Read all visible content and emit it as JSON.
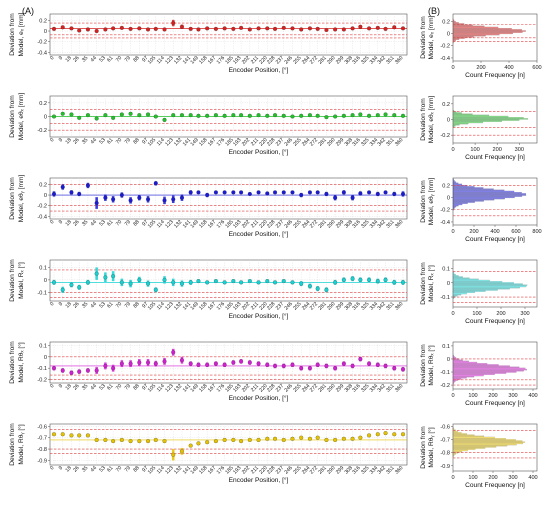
{
  "panel_labels": [
    "(A)",
    "(B)"
  ],
  "chart_data": [
    {
      "id": "ex",
      "type": "scatter",
      "color": "#d62020",
      "ylabel_line1": "Deviation from",
      "ylabel_line2": "Model, eₓ [mm]",
      "xlabel": "Encoder Position, [°]",
      "x": [
        0,
        9,
        18,
        26,
        35,
        44,
        53,
        61,
        70,
        79,
        88,
        97,
        105,
        114,
        123,
        132,
        141,
        149,
        158,
        167,
        176,
        185,
        193,
        202,
        211,
        220,
        228,
        237,
        246,
        255,
        264,
        272,
        281,
        290,
        299,
        308,
        316,
        325,
        334,
        342,
        351,
        360
      ],
      "y": [
        0.04,
        0.07,
        0.05,
        0.01,
        0.03,
        0.0,
        0.03,
        0.05,
        0.06,
        0.04,
        0.05,
        0.03,
        0.04,
        0.03,
        0.15,
        0.08,
        0.04,
        0.03,
        0.05,
        0.04,
        0.05,
        0.04,
        0.06,
        0.03,
        0.05,
        0.05,
        0.04,
        0.06,
        0.05,
        0.03,
        0.05,
        0.04,
        0.02,
        0.03,
        0.03,
        0.05,
        0.08,
        0.05,
        0.06,
        0.04,
        0.07,
        0.05
      ],
      "spread": [
        0.06,
        0.06,
        0.05,
        0.05,
        0.06,
        0.06,
        0.05,
        0.05,
        0.05,
        0.04,
        0.05,
        0.04,
        0.05,
        0.05,
        0.12,
        0.08,
        0.06,
        0.04,
        0.04,
        0.04,
        0.04,
        0.04,
        0.04,
        0.04,
        0.04,
        0.04,
        0.04,
        0.04,
        0.04,
        0.04,
        0.05,
        0.04,
        0.05,
        0.05,
        0.05,
        0.05,
        0.06,
        0.05,
        0.05,
        0.05,
        0.06,
        0.06
      ],
      "yticks": [
        -0.4,
        -0.2,
        0,
        0.2
      ],
      "ylim": [
        -0.45,
        0.32
      ],
      "mean_line": 0.045,
      "bound_lines": [
        0.15,
        -0.07,
        -0.13
      ],
      "hist": {
        "xticks": [
          0,
          200,
          400,
          600
        ],
        "xlim": [
          0,
          600
        ],
        "xlabel": "Count Frequency [n]",
        "peak": 520,
        "center": 0.04,
        "sigma": 0.06
      }
    },
    {
      "id": "ethx",
      "type": "scatter",
      "color": "#22c02a",
      "ylabel_line1": "Deviation from",
      "ylabel_line2": "Model, eθₓ [mm]",
      "xlabel": "Encoder Position, [°]",
      "x": [
        0,
        9,
        18,
        26,
        35,
        44,
        53,
        61,
        70,
        79,
        88,
        97,
        105,
        114,
        123,
        132,
        141,
        149,
        158,
        167,
        176,
        185,
        193,
        202,
        211,
        220,
        228,
        237,
        246,
        255,
        264,
        272,
        281,
        290,
        299,
        308,
        316,
        325,
        334,
        342,
        351,
        360
      ],
      "y": [
        0.0,
        0.04,
        0.03,
        -0.02,
        0.02,
        -0.03,
        0.02,
        -0.02,
        0.03,
        0.04,
        0.02,
        0.03,
        0.0,
        -0.05,
        0.02,
        0.02,
        0.02,
        0.01,
        0.01,
        0.02,
        0.01,
        0.02,
        0.02,
        0.01,
        0.02,
        0.01,
        0.02,
        0.01,
        0.0,
        0.01,
        0.02,
        0.01,
        -0.01,
        0.0,
        0.01,
        0.02,
        0.03,
        0.01,
        0.02,
        0.03,
        0.02,
        0.01
      ],
      "spread": [
        0.04,
        0.04,
        0.04,
        0.04,
        0.04,
        0.04,
        0.04,
        0.04,
        0.04,
        0.05,
        0.04,
        0.04,
        0.04,
        0.05,
        0.04,
        0.04,
        0.03,
        0.03,
        0.03,
        0.03,
        0.03,
        0.03,
        0.03,
        0.03,
        0.03,
        0.03,
        0.03,
        0.03,
        0.03,
        0.03,
        0.03,
        0.03,
        0.03,
        0.03,
        0.03,
        0.03,
        0.03,
        0.03,
        0.03,
        0.03,
        0.03,
        0.03
      ],
      "yticks": [
        -0.2,
        0,
        0.2
      ],
      "ylim": [
        -0.3,
        0.3
      ],
      "mean_line": 0.0,
      "bound_lines": [
        0.1,
        -0.1,
        -0.2
      ],
      "hist": {
        "xticks": [
          0,
          100,
          200,
          300
        ],
        "xlim": [
          0,
          380
        ],
        "xlabel": "Count Frequency [n]",
        "peak": 340,
        "center": 0.01,
        "sigma": 0.035
      }
    },
    {
      "id": "ethy",
      "type": "scatter",
      "color": "#1a1ad6",
      "ylabel_line1": "Deviation from",
      "ylabel_line2": "Model, eθᵧ [mm]",
      "xlabel": "Encoder Position, [°]",
      "x": [
        0,
        9,
        18,
        26,
        35,
        44,
        53,
        61,
        70,
        79,
        88,
        97,
        105,
        114,
        123,
        132,
        141,
        149,
        158,
        167,
        176,
        185,
        193,
        202,
        211,
        220,
        228,
        237,
        246,
        255,
        264,
        272,
        281,
        290,
        299,
        308,
        316,
        325,
        334,
        342,
        351,
        360
      ],
      "y": [
        0.02,
        0.15,
        0.05,
        0.02,
        0.18,
        -0.15,
        -0.05,
        -0.08,
        0.0,
        -0.1,
        -0.05,
        -0.08,
        0.22,
        -0.1,
        -0.08,
        -0.05,
        0.05,
        0.05,
        0.0,
        0.05,
        0.05,
        0.05,
        0.05,
        0.02,
        0.05,
        0.03,
        0.05,
        0.05,
        0.05,
        0.0,
        0.05,
        0.05,
        0.02,
        -0.05,
        0.05,
        -0.05,
        0.03,
        0.05,
        0.02,
        0.05,
        0.02,
        0.02
      ],
      "spread": [
        0.1,
        0.1,
        0.08,
        0.08,
        0.1,
        0.22,
        0.12,
        0.12,
        0.1,
        0.12,
        0.1,
        0.12,
        0.08,
        0.14,
        0.14,
        0.12,
        0.08,
        0.06,
        0.08,
        0.06,
        0.06,
        0.06,
        0.06,
        0.06,
        0.06,
        0.06,
        0.06,
        0.06,
        0.06,
        0.08,
        0.06,
        0.06,
        0.08,
        0.1,
        0.08,
        0.1,
        0.08,
        0.06,
        0.08,
        0.06,
        0.08,
        0.1
      ],
      "yticks": [
        -0.4,
        -0.2,
        0,
        0.2
      ],
      "ylim": [
        -0.45,
        0.32
      ],
      "mean_line": 0.0,
      "bound_lines": [
        0.2,
        -0.2,
        -0.3
      ],
      "hist": {
        "xticks": [
          0,
          200,
          400,
          600,
          800
        ],
        "xlim": [
          0,
          800
        ],
        "xlabel": "Count Frequency [n]",
        "peak": 700,
        "center": 0.05,
        "sigma": 0.08
      }
    },
    {
      "id": "rx",
      "type": "scatter",
      "color": "#18d2d2",
      "ylabel_line1": "Deviation from",
      "ylabel_line2": "Model, Rₓ [°]",
      "xlabel": "Encoder Position, [°]",
      "x": [
        0,
        9,
        18,
        26,
        35,
        44,
        53,
        61,
        70,
        79,
        88,
        97,
        105,
        114,
        123,
        132,
        141,
        149,
        158,
        167,
        176,
        185,
        193,
        202,
        211,
        220,
        228,
        237,
        246,
        255,
        264,
        272,
        281,
        290,
        299,
        308,
        316,
        325,
        334,
        342,
        351,
        360
      ],
      "y": [
        -0.02,
        -0.08,
        -0.04,
        -0.06,
        -0.02,
        0.05,
        0.02,
        0.03,
        -0.02,
        -0.03,
        0.0,
        -0.03,
        -0.08,
        0.0,
        -0.02,
        -0.03,
        -0.02,
        -0.01,
        -0.02,
        -0.01,
        -0.02,
        -0.01,
        -0.02,
        -0.01,
        -0.02,
        -0.01,
        -0.02,
        -0.01,
        -0.02,
        -0.03,
        -0.05,
        -0.07,
        -0.08,
        -0.02,
        0.0,
        0.01,
        0.0,
        0.0,
        -0.01,
        0.0,
        -0.02,
        -0.02
      ],
      "spread": [
        0.04,
        0.05,
        0.04,
        0.04,
        0.04,
        0.1,
        0.08,
        0.08,
        0.06,
        0.06,
        0.05,
        0.05,
        0.04,
        0.06,
        0.06,
        0.05,
        0.04,
        0.03,
        0.03,
        0.03,
        0.03,
        0.03,
        0.03,
        0.03,
        0.03,
        0.03,
        0.03,
        0.03,
        0.03,
        0.04,
        0.04,
        0.04,
        0.04,
        0.04,
        0.04,
        0.04,
        0.04,
        0.04,
        0.04,
        0.04,
        0.04,
        0.04
      ],
      "yticks": [
        -0.1,
        0,
        0.1
      ],
      "ylim": [
        -0.17,
        0.16
      ],
      "mean_line": -0.02,
      "bound_lines": [
        0.08,
        -0.1,
        -0.14
      ],
      "hist": {
        "xticks": [
          0,
          100,
          200,
          300
        ],
        "xlim": [
          0,
          350
        ],
        "xlabel": "Count Frequency [n]",
        "peak": 310,
        "center": -0.02,
        "sigma": 0.03
      }
    },
    {
      "id": "ry",
      "type": "scatter",
      "color": "#d21ed2",
      "ylabel_line1": "Deviation from",
      "ylabel_line2": "Model, Rθₓ [°]",
      "xlabel": "Encoder Position, [°]",
      "x": [
        0,
        9,
        18,
        26,
        35,
        44,
        53,
        61,
        70,
        79,
        88,
        97,
        105,
        114,
        123,
        132,
        141,
        149,
        158,
        167,
        176,
        185,
        193,
        202,
        211,
        220,
        228,
        237,
        246,
        255,
        264,
        272,
        281,
        290,
        299,
        308,
        316,
        325,
        334,
        342,
        351,
        360
      ],
      "y": [
        -0.1,
        -0.12,
        -0.14,
        -0.13,
        -0.12,
        -0.12,
        -0.08,
        -0.1,
        -0.06,
        -0.06,
        -0.05,
        -0.05,
        -0.06,
        -0.04,
        0.04,
        -0.03,
        -0.06,
        -0.07,
        -0.07,
        -0.06,
        -0.07,
        -0.05,
        -0.04,
        -0.05,
        -0.06,
        -0.07,
        -0.08,
        -0.08,
        -0.07,
        -0.1,
        -0.1,
        -0.07,
        -0.08,
        -0.1,
        -0.06,
        -0.08,
        -0.02,
        -0.06,
        -0.07,
        -0.08,
        -0.1,
        -0.11
      ],
      "spread": [
        0.04,
        0.04,
        0.04,
        0.04,
        0.04,
        0.06,
        0.06,
        0.06,
        0.06,
        0.06,
        0.06,
        0.06,
        0.05,
        0.06,
        0.06,
        0.06,
        0.04,
        0.04,
        0.04,
        0.04,
        0.04,
        0.04,
        0.04,
        0.04,
        0.04,
        0.04,
        0.04,
        0.04,
        0.04,
        0.04,
        0.04,
        0.04,
        0.04,
        0.04,
        0.04,
        0.04,
        0.04,
        0.04,
        0.04,
        0.04,
        0.04,
        0.04
      ],
      "yticks": [
        -0.2,
        -0.1,
        0,
        0.1
      ],
      "ylim": [
        -0.23,
        0.13
      ],
      "mean_line": -0.08,
      "bound_lines": [
        0.0,
        -0.16,
        -0.2
      ],
      "hist": {
        "xticks": [
          0,
          100,
          200,
          300,
          400
        ],
        "xlim": [
          0,
          420
        ],
        "xlabel": "Count Frequency [n]",
        "peak": 370,
        "center": -0.08,
        "sigma": 0.035
      }
    },
    {
      "id": "rz",
      "type": "scatter",
      "color": "#e6c300",
      "ylabel_line1": "Deviation from",
      "ylabel_line2": "Model, Rθᵧ [°]",
      "xlabel": "Encoder Position, [°]",
      "x": [
        0,
        9,
        18,
        26,
        35,
        44,
        53,
        61,
        70,
        79,
        88,
        97,
        105,
        114,
        123,
        132,
        141,
        149,
        158,
        167,
        176,
        185,
        193,
        202,
        211,
        220,
        228,
        237,
        246,
        255,
        264,
        272,
        281,
        290,
        299,
        308,
        316,
        325,
        334,
        342,
        351,
        360
      ],
      "y": [
        -0.67,
        -0.67,
        -0.68,
        -0.68,
        -0.68,
        -0.72,
        -0.72,
        -0.73,
        -0.72,
        -0.73,
        -0.73,
        -0.73,
        -0.72,
        -0.73,
        -0.85,
        -0.82,
        -0.77,
        -0.75,
        -0.74,
        -0.73,
        -0.72,
        -0.72,
        -0.73,
        -0.72,
        -0.72,
        -0.71,
        -0.71,
        -0.72,
        -0.71,
        -0.7,
        -0.71,
        -0.7,
        -0.72,
        -0.72,
        -0.71,
        -0.71,
        -0.7,
        -0.68,
        -0.67,
        -0.66,
        -0.67,
        -0.67
      ],
      "spread": [
        0.03,
        0.03,
        0.03,
        0.03,
        0.03,
        0.03,
        0.03,
        0.03,
        0.03,
        0.03,
        0.03,
        0.03,
        0.03,
        0.03,
        0.1,
        0.06,
        0.03,
        0.03,
        0.03,
        0.03,
        0.03,
        0.03,
        0.03,
        0.03,
        0.03,
        0.03,
        0.03,
        0.03,
        0.03,
        0.03,
        0.03,
        0.03,
        0.03,
        0.03,
        0.03,
        0.03,
        0.03,
        0.03,
        0.03,
        0.03,
        0.03,
        0.03
      ],
      "yticks": [
        -0.9,
        -0.8,
        -0.7,
        -0.6
      ],
      "ylim": [
        -0.94,
        -0.58
      ],
      "mean_line": -0.72,
      "bound_lines": [
        -0.63,
        -0.8,
        -0.84
      ],
      "hist": {
        "xticks": [
          0,
          100,
          200,
          300,
          400
        ],
        "xlim": [
          0,
          420
        ],
        "xlabel": "Count Frequency [n]",
        "peak": 360,
        "center": -0.72,
        "sigma": 0.035
      }
    }
  ]
}
